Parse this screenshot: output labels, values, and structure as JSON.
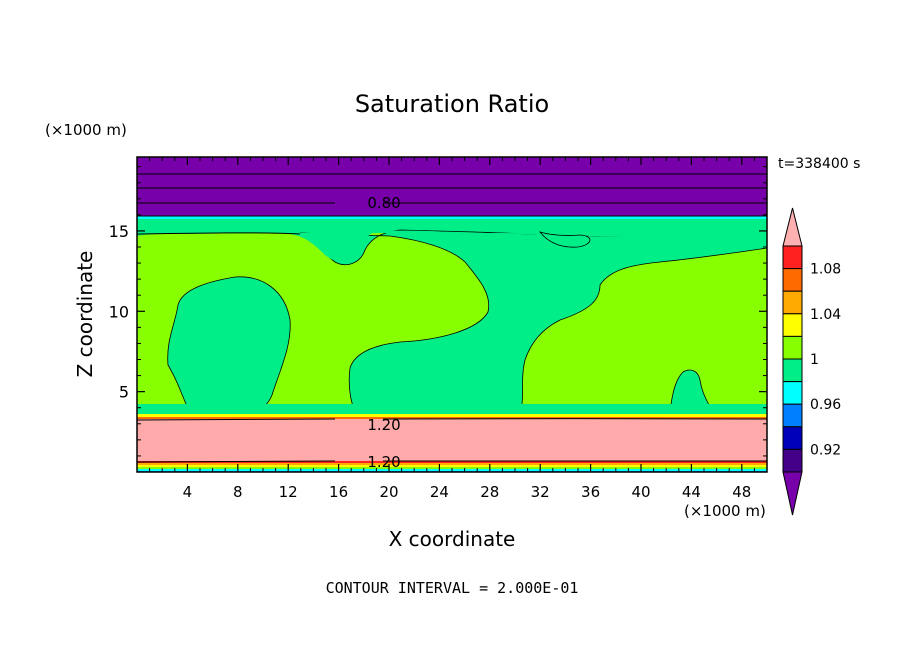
{
  "chart_data": {
    "type": "heatmap",
    "title": "Saturation Ratio",
    "xlabel": "X coordinate",
    "ylabel": "Z coordinate",
    "x_unit": "(×1000 m)",
    "z_unit": "(×1000 m)",
    "time_label": "t=338400 s",
    "footer": "CONTOUR INTERVAL = 2.000E-01",
    "x_ticks": [
      "4",
      "8",
      "12",
      "16",
      "20",
      "24",
      "28",
      "32",
      "36",
      "40",
      "44",
      "48"
    ],
    "x_tick_values": [
      4,
      8,
      12,
      16,
      20,
      24,
      28,
      32,
      36,
      40,
      44,
      48
    ],
    "y_ticks": [
      "5",
      "10",
      "15"
    ],
    "y_tick_values": [
      5,
      10,
      15
    ],
    "xlim": [
      0,
      50
    ],
    "ylim": [
      0,
      19.6
    ],
    "contour_labels": [
      {
        "text": "0.80",
        "x": 17.7,
        "z": 16.8
      },
      {
        "text": "1.20",
        "x": 17.7,
        "z": 3.0
      },
      {
        "text": "1.20",
        "x": 17.7,
        "z": 0.7
      }
    ],
    "colorbar": {
      "levels_top_to_bottom": [
        "1.08",
        "1.04",
        "1",
        "0.96",
        "0.92"
      ],
      "colors_top_to_bottom": [
        "#ffb0b0",
        "#ff2020",
        "#ff6a00",
        "#ffaa00",
        "#ffff00",
        "#88ff00",
        "#00ee88",
        "#00ffff",
        "#0080ff",
        "#0000bb",
        "#440088",
        "#7700aa"
      ]
    },
    "colors": {
      "high": "#ffaaaa",
      "above_one": "#88ff00",
      "near_one": "#00ee88",
      "cyan": "#00ffff",
      "low": "#7700aa"
    }
  }
}
